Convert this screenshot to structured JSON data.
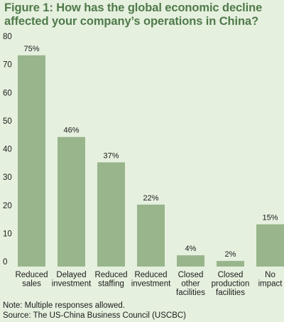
{
  "title": "Figure 1: How has the global economic decline affected your company’s operations in China?",
  "chart_data": {
    "type": "bar",
    "categories": [
      [
        "Reduced",
        "sales"
      ],
      [
        "Delayed",
        "investment"
      ],
      [
        "Reduced",
        "staffing"
      ],
      [
        "Reduced",
        "investment"
      ],
      [
        "Closed",
        "other",
        "facilities"
      ],
      [
        "Closed",
        "production",
        "facilities"
      ],
      [
        "No",
        "impact"
      ]
    ],
    "values": [
      75,
      46,
      37,
      22,
      4,
      2,
      15
    ],
    "value_labels": [
      "75%",
      "46%",
      "37%",
      "22%",
      "4%",
      "2%",
      "15%"
    ],
    "yticks": [
      "0",
      "10",
      "20",
      "30",
      "40",
      "50",
      "60",
      "70",
      "80"
    ],
    "ylim": [
      0,
      80
    ],
    "grid": false,
    "bar_color": "#98b58c"
  },
  "note": "Note: Multiple responses allowed.",
  "source": "Source: The US-China Business Council (USCBC)",
  "colors": {
    "background": "#e6f0df",
    "title": "#4f7a4a",
    "bar": "#98b58c"
  }
}
